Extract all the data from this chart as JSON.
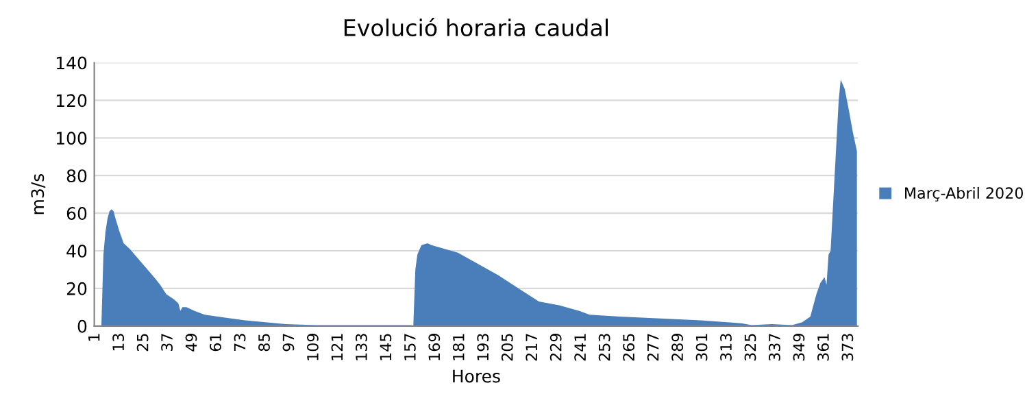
{
  "chart_data": {
    "type": "area",
    "title": "Evolució horaria caudal",
    "xlabel": "Hores",
    "ylabel": "m3/s",
    "xlim": [
      0.5,
      377.5
    ],
    "xticks": [
      1,
      13,
      25,
      37,
      49,
      61,
      73,
      85,
      97,
      109,
      121,
      133,
      145,
      157,
      169,
      181,
      193,
      205,
      217,
      229,
      241,
      253,
      265,
      277,
      289,
      301,
      313,
      325,
      337,
      349,
      361,
      373
    ],
    "ylim": [
      0,
      140
    ],
    "yticks": [
      0,
      20,
      40,
      60,
      80,
      100,
      120,
      140
    ],
    "grid": "y",
    "legend": "right",
    "series": [
      {
        "name": "Març-Abril 2020",
        "color": "#4a7ebb",
        "x": [
          1,
          4,
          5,
          6,
          7,
          8,
          9,
          10,
          11,
          13,
          15,
          18,
          22,
          26,
          30,
          33,
          36,
          40,
          42,
          43,
          44,
          46,
          50,
          55,
          65,
          75,
          85,
          95,
          110,
          157,
          158,
          159,
          160,
          162,
          165,
          167,
          180,
          190,
          200,
          210,
          220,
          230,
          240,
          245,
          260,
          280,
          300,
          320,
          325,
          335,
          345,
          350,
          354,
          357,
          359,
          361,
          362,
          363,
          364,
          366,
          368,
          369,
          371,
          373,
          375,
          377
        ],
        "values": [
          0,
          0,
          38,
          50,
          57,
          61,
          62,
          61,
          57,
          50,
          44,
          41,
          36,
          31,
          26,
          22,
          17,
          14,
          12,
          8,
          10,
          10,
          8,
          6,
          4.5,
          3,
          2,
          1,
          0.5,
          0.5,
          0,
          30,
          38,
          43,
          44,
          43,
          39,
          33,
          27,
          20,
          13,
          11,
          8,
          6,
          5,
          4,
          3,
          1.5,
          0.5,
          1,
          0.5,
          2,
          5,
          17,
          23,
          26,
          22,
          38,
          40,
          80,
          120,
          131,
          126,
          115,
          103,
          93
        ]
      }
    ]
  }
}
